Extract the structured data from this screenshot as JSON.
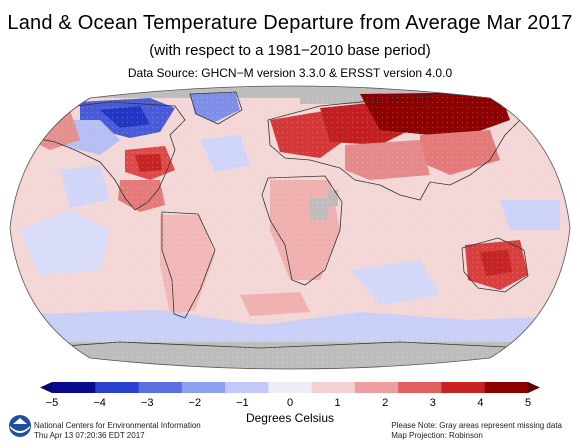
{
  "header": {
    "title": "Land & Ocean Temperature Departure from Average Mar 2017",
    "subtitle": "(with respect to a 1981−2010 base period)",
    "source": "Data Source: GHCN−M version 3.3.0 & ERSST version 4.0.0"
  },
  "legend": {
    "title": "Degrees Celsius",
    "ticks": [
      "−5",
      "−4",
      "−3",
      "−2",
      "−1",
      "0",
      "1",
      "2",
      "3",
      "4",
      "5"
    ],
    "tick_values": [
      -5,
      -4,
      -3,
      -2,
      -1,
      0,
      1,
      2,
      3,
      4,
      5
    ],
    "colors": [
      "#0a0a8c",
      "#2b3fcf",
      "#5a6fe0",
      "#8f9ff0",
      "#c2c9f8",
      "#eeeefb",
      "#f5d0d0",
      "#ee9e9e",
      "#e06060",
      "#c82222",
      "#8c0000"
    ],
    "under_color": "#06066e",
    "over_color": "#5c0000"
  },
  "footer": {
    "org": "National Centers for Environmental Information",
    "timestamp": "Thu Apr 13 07:20:36 EDT 2017",
    "note": "Please Note: Gray areas represent missing data",
    "projection": "Map Projection: Robinson"
  },
  "map": {
    "projection": "Robinson",
    "ocean_base_color": "#f3d6d6",
    "missing_color": "#bdbdbd",
    "land_outline_color": "#333333",
    "anomaly_regions": [
      {
        "name": "Siberia / Northern Asia",
        "level": "very-warm",
        "color": "#8c0000"
      },
      {
        "name": "Eastern Europe / Western Russia",
        "level": "warm",
        "color": "#d23030"
      },
      {
        "name": "South Central USA / Mexico",
        "level": "warm",
        "color": "#d23030"
      },
      {
        "name": "Australia",
        "level": "warm",
        "color": "#d84040"
      },
      {
        "name": "Northern Canada / Baffin",
        "level": "cold",
        "color": "#3445cf"
      },
      {
        "name": "Greenland",
        "level": "cool",
        "color": "#7f8fe8"
      },
      {
        "name": "Southern Ocean band",
        "level": "cool",
        "color": "#c9cff7"
      },
      {
        "name": "Eastern Pacific",
        "level": "cool",
        "color": "#c9cff7"
      },
      {
        "name": "Antarctica",
        "level": "missing",
        "color": "#bdbdbd"
      },
      {
        "name": "Arctic Ocean",
        "level": "missing",
        "color": "#bdbdbd"
      }
    ]
  }
}
